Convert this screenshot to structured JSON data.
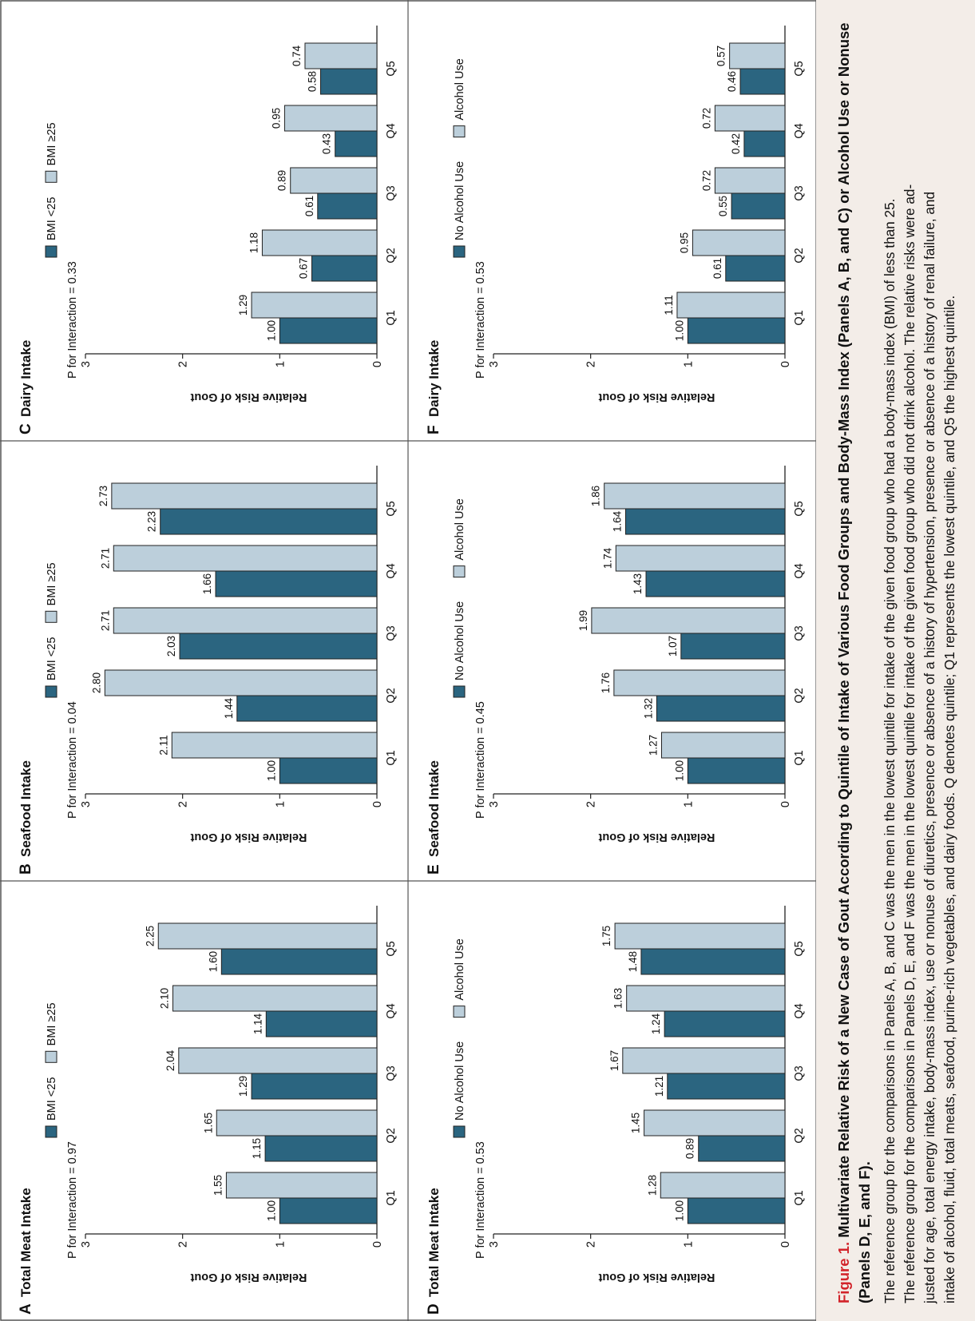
{
  "figure": {
    "label": "Figure 1.",
    "title": "Multivariate Relative Risk of a New Case of Gout According to Quintile of Intake of Various Food Groups and Body-Mass Index (Panels A, B, and C) or Alcohol Use or Nonuse (Panels D, E, and F).",
    "caption_lines": [
      "The reference group for the comparisons in Panels A, B, and C was the men in the lowest quintile for intake of the given food group who had a body-mass index (BMI) of less than 25.",
      "The reference group for the comparisons in Panels D, E, and F was the men in the lowest quintile for intake of the given food group who did not drink alcohol. The relative risks were ad-",
      "justed for age, total energy intake, body-mass index, use or nonuse of diuretics, presence or absence of a history of hypertension, presence or absence of a history of renal failure, and",
      "intake of alcohol, fluid, total meats, seafood, purine-rich vegetables, and dairy foods. Q denotes quintile; Q1 represents the lowest quintile, and Q5 the highest quintile."
    ]
  },
  "colors": {
    "dark": "#2b6580",
    "light": "#bccfdb",
    "title_red": "#d2232a",
    "caption_bg": "#f3ede8"
  },
  "chart_data": [
    {
      "panel": "A",
      "title": "Total Meat Intake",
      "type": "bar",
      "ylabel": "Relative Risk of Gout",
      "ylim": [
        0,
        3
      ],
      "yticks": [
        "0",
        "1",
        "2",
        "3"
      ],
      "categories": [
        "Q1",
        "Q2",
        "Q3",
        "Q4",
        "Q5"
      ],
      "p_text": "P for Interaction = 0.97",
      "series": [
        {
          "name": "BMI <25",
          "values": [
            1.0,
            1.15,
            1.29,
            1.14,
            1.6
          ],
          "labels": [
            "1.00",
            "1.15",
            "1.29",
            "1.14",
            "1.60"
          ]
        },
        {
          "name": "BMI ≥25",
          "values": [
            1.55,
            1.65,
            2.04,
            2.1,
            2.25
          ],
          "labels": [
            "1.55",
            "1.65",
            "2.04",
            "2.10",
            "2.25"
          ]
        }
      ]
    },
    {
      "panel": "B",
      "title": "Seafood Intake",
      "type": "bar",
      "ylabel": "Relative Risk of Gout",
      "ylim": [
        0,
        3
      ],
      "yticks": [
        "0",
        "1",
        "2",
        "3"
      ],
      "categories": [
        "Q1",
        "Q2",
        "Q3",
        "Q4",
        "Q5"
      ],
      "p_text": "P for Interaction = 0.04",
      "series": [
        {
          "name": "BMI <25",
          "values": [
            1.0,
            1.44,
            2.03,
            1.66,
            2.23
          ],
          "labels": [
            "1.00",
            "1.44",
            "2.03",
            "1.66",
            "2.23"
          ]
        },
        {
          "name": "BMI ≥25",
          "values": [
            2.11,
            2.8,
            2.71,
            2.71,
            2.73
          ],
          "labels": [
            "2.11",
            "2.80",
            "2.71",
            "2.71",
            "2.73"
          ]
        }
      ]
    },
    {
      "panel": "C",
      "title": "Dairy Intake",
      "type": "bar",
      "ylabel": "Relative Risk of Gout",
      "ylim": [
        0,
        3
      ],
      "yticks": [
        "0",
        "1",
        "2",
        "3"
      ],
      "categories": [
        "Q1",
        "Q2",
        "Q3",
        "Q4",
        "Q5"
      ],
      "p_text": "P for Interaction = 0.33",
      "series": [
        {
          "name": "BMI <25",
          "values": [
            1.0,
            0.67,
            0.61,
            0.43,
            0.58
          ],
          "labels": [
            "1.00",
            "0.67",
            "0.61",
            "0.43",
            "0.58"
          ]
        },
        {
          "name": "BMI ≥25",
          "values": [
            1.29,
            1.18,
            0.89,
            0.95,
            0.74
          ],
          "labels": [
            "1.29",
            "1.18",
            "0.89",
            "0.95",
            "0.74"
          ]
        }
      ]
    },
    {
      "panel": "D",
      "title": "Total Meat Intake",
      "type": "bar",
      "ylabel": "Relative Risk of Gout",
      "ylim": [
        0,
        3
      ],
      "yticks": [
        "0",
        "1",
        "2",
        "3"
      ],
      "categories": [
        "Q1",
        "Q2",
        "Q3",
        "Q4",
        "Q5"
      ],
      "p_text": "P for Interaction = 0.53",
      "series": [
        {
          "name": "No Alcohol Use",
          "values": [
            1.0,
            0.89,
            1.21,
            1.24,
            1.48
          ],
          "labels": [
            "1.00",
            "0.89",
            "1.21",
            "1.24",
            "1.48"
          ]
        },
        {
          "name": "Alcohol Use",
          "values": [
            1.28,
            1.45,
            1.67,
            1.63,
            1.75
          ],
          "labels": [
            "1.28",
            "1.45",
            "1.67",
            "1.63",
            "1.75"
          ]
        }
      ]
    },
    {
      "panel": "E",
      "title": "Seafood Intake",
      "type": "bar",
      "ylabel": "Relative Risk of Gout",
      "ylim": [
        0,
        3
      ],
      "yticks": [
        "0",
        "1",
        "2",
        "3"
      ],
      "categories": [
        "Q1",
        "Q2",
        "Q3",
        "Q4",
        "Q5"
      ],
      "p_text": "P for Interaction = 0.45",
      "series": [
        {
          "name": "No Alcohol Use",
          "values": [
            1.0,
            1.32,
            1.07,
            1.43,
            1.64
          ],
          "labels": [
            "1.00",
            "1.32",
            "1.07",
            "1.43",
            "1.64"
          ]
        },
        {
          "name": "Alcohol Use",
          "values": [
            1.27,
            1.76,
            1.99,
            1.74,
            1.86
          ],
          "labels": [
            "1.27",
            "1.76",
            "1.99",
            "1.74",
            "1.86"
          ]
        }
      ]
    },
    {
      "panel": "F",
      "title": "Dairy Intake",
      "type": "bar",
      "ylabel": "Relative Risk of Gout",
      "ylim": [
        0,
        3
      ],
      "yticks": [
        "0",
        "1",
        "2",
        "3"
      ],
      "categories": [
        "Q1",
        "Q2",
        "Q3",
        "Q4",
        "Q5"
      ],
      "p_text": "P for Interaction = 0.53",
      "series": [
        {
          "name": "No Alcohol Use",
          "values": [
            1.0,
            0.61,
            0.55,
            0.42,
            0.46
          ],
          "labels": [
            "1.00",
            "0.61",
            "0.55",
            "0.42",
            "0.46"
          ]
        },
        {
          "name": "Alcohol Use",
          "values": [
            1.11,
            0.95,
            0.72,
            0.72,
            0.57
          ],
          "labels": [
            "1.11",
            "0.95",
            "0.72",
            "0.72",
            "0.57"
          ]
        }
      ]
    }
  ]
}
